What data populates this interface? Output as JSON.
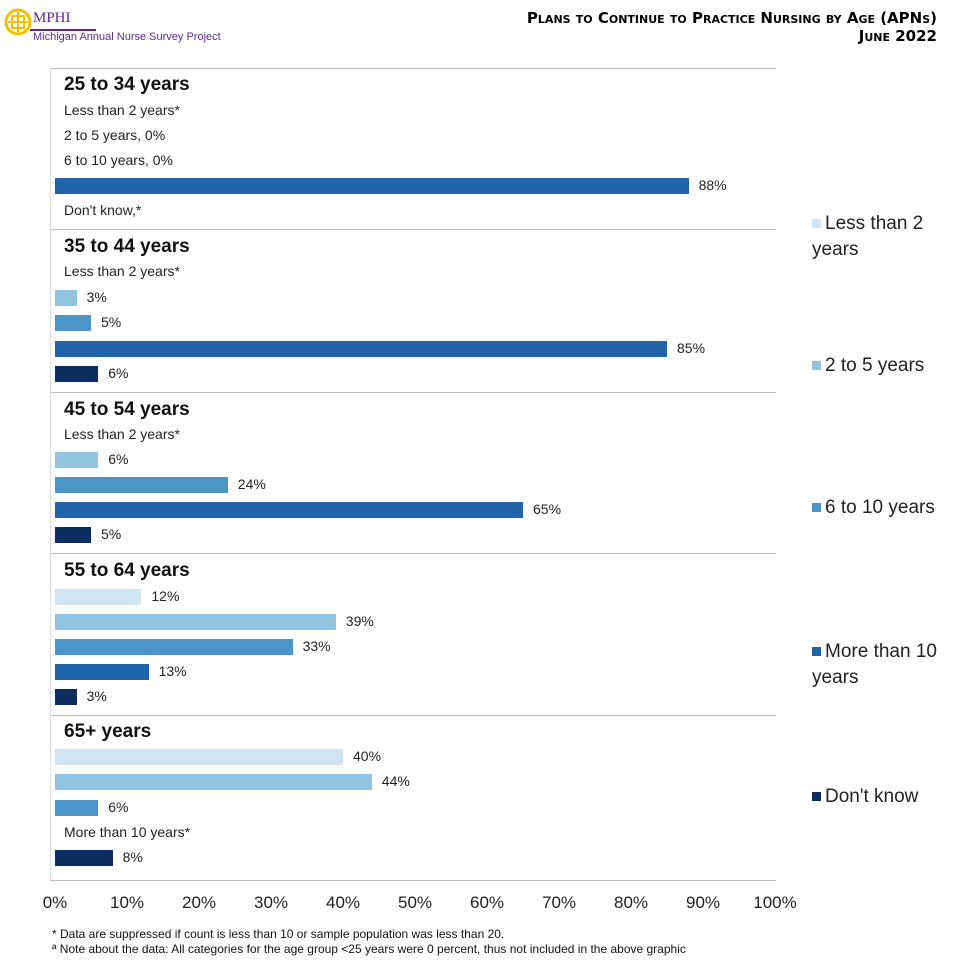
{
  "header": {
    "logo_name": "MPHI",
    "logo_sub": "Michigan Annual Nurse Survey Project",
    "title": "Plans to Continue to Practice Nursing by Age (APNs)",
    "date": "June 2022"
  },
  "chart_data": {
    "type": "bar",
    "orientation": "horizontal",
    "title": "Plans to Continue to Practice Nursing by Age (APNs)",
    "xlim": [
      0,
      100
    ],
    "x_ticks": [
      "0%",
      "10%",
      "20%",
      "30%",
      "40%",
      "50%",
      "60%",
      "70%",
      "80%",
      "90%",
      "100%"
    ],
    "legend_position": "right",
    "series": [
      {
        "name": "Less than 2 years",
        "color": "#d0e3f1"
      },
      {
        "name": "2 to 5 years",
        "color": "#92c4df"
      },
      {
        "name": "6 to 10 years",
        "color": "#4b95c7"
      },
      {
        "name": "More than 10 years",
        "color": "#2164aa"
      },
      {
        "name": "Don't know",
        "color": "#0c2e5f"
      }
    ],
    "groups": [
      {
        "label": "25 to 34 years",
        "rows": [
          {
            "series": 0,
            "value": null,
            "label": "Less than 2 years*"
          },
          {
            "series": 1,
            "value": 0,
            "label": "2 to 5 years, 0%"
          },
          {
            "series": 2,
            "value": 0,
            "label": "6 to 10 years, 0%"
          },
          {
            "series": 3,
            "value": 88,
            "label": "88%"
          },
          {
            "series": 4,
            "value": null,
            "label": "Don't know,*"
          }
        ]
      },
      {
        "label": "35 to 44 years",
        "rows": [
          {
            "series": 0,
            "value": null,
            "label": "Less than 2 years*"
          },
          {
            "series": 1,
            "value": 3,
            "label": "3%"
          },
          {
            "series": 2,
            "value": 5,
            "label": "5%"
          },
          {
            "series": 3,
            "value": 85,
            "label": "85%"
          },
          {
            "series": 4,
            "value": 6,
            "label": "6%"
          }
        ]
      },
      {
        "label": "45 to 54 years",
        "rows": [
          {
            "series": 0,
            "value": null,
            "label": "Less than 2 years*"
          },
          {
            "series": 1,
            "value": 6,
            "label": "6%"
          },
          {
            "series": 2,
            "value": 24,
            "label": "24%"
          },
          {
            "series": 3,
            "value": 65,
            "label": "65%"
          },
          {
            "series": 4,
            "value": 5,
            "label": "5%"
          }
        ]
      },
      {
        "label": "55 to 64 years",
        "rows": [
          {
            "series": 0,
            "value": 12,
            "label": "12%"
          },
          {
            "series": 1,
            "value": 39,
            "label": "39%"
          },
          {
            "series": 2,
            "value": 33,
            "label": "33%"
          },
          {
            "series": 3,
            "value": 13,
            "label": "13%"
          },
          {
            "series": 4,
            "value": 3,
            "label": "3%"
          }
        ]
      },
      {
        "label": "65+ years",
        "rows": [
          {
            "series": 0,
            "value": 40,
            "label": "40%"
          },
          {
            "series": 1,
            "value": 44,
            "label": "44%"
          },
          {
            "series": 2,
            "value": 6,
            "label": "6%"
          },
          {
            "series": 3,
            "value": null,
            "label": "More than 10 years*"
          },
          {
            "series": 4,
            "value": 8,
            "label": "8%"
          }
        ]
      }
    ]
  },
  "legend": [
    "Less than 2 years",
    "2 to 5 years",
    "6 to 10 years",
    "More than 10 years",
    "Don't know"
  ],
  "footnotes": [
    "* Data are suppressed if count is less than 10 or sample population was less than 20.",
    "ª Note about the data: All categories for the age group <25 years were 0 percent, thus not included in the above graphic"
  ]
}
